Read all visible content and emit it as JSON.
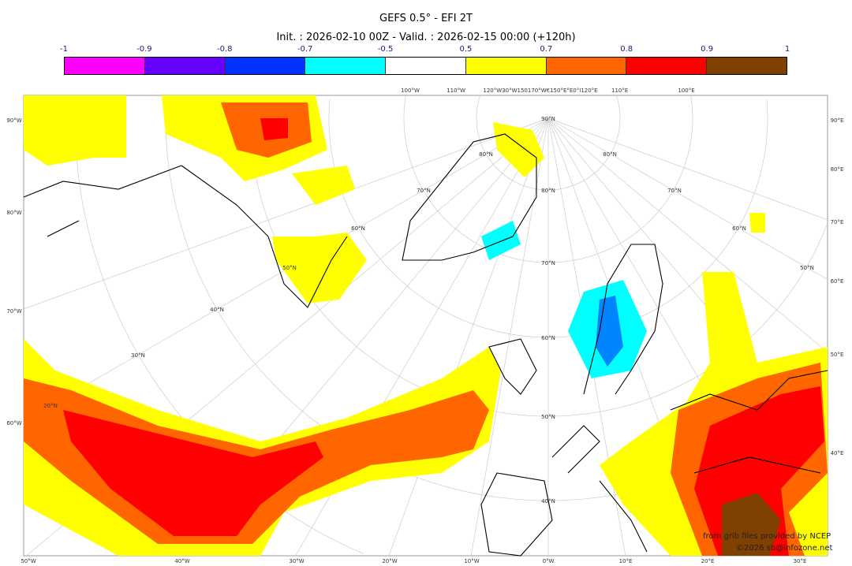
{
  "title": "GEFS 0.5° - EFI 2T",
  "subtitle": "Init. : 2026-02-10 00Z - Valid. : 2026-02-15 00:00 (+120h)",
  "colorbar": {
    "ticks": [
      "-1",
      "-0.9",
      "-0.8",
      "-0.7",
      "-0.5",
      "0.5",
      "0.7",
      "0.8",
      "0.9",
      "1"
    ],
    "colors": [
      "#ff00ff",
      "#6600ff",
      "#0033ff",
      "#00ffff",
      "#ffffff",
      "#ffff00",
      "#ff6600",
      "#ff0000",
      "#804000"
    ]
  },
  "axes": {
    "top": [
      "100°W",
      "110°W",
      "120°W30°W150170°W€150°E°E0°I120°E",
      "110°E",
      "100°E"
    ],
    "left": [
      "90°W",
      "80°W",
      "70°W",
      "60°W"
    ],
    "right": [
      "90°E",
      "80°E",
      "70°E",
      "60°E",
      "50°E",
      "40°E"
    ],
    "bottom": [
      "50°W",
      "40°W",
      "30°W",
      "20°W",
      "10°W",
      "0°W",
      "10°E",
      "20°E",
      "30°E"
    ],
    "lat_center": [
      "90°N",
      "80°N",
      "70°N",
      "60°N",
      "50°N",
      "40°N"
    ],
    "lat_left": [
      "80°N",
      "70°N",
      "60°N",
      "50°N",
      "40°N",
      "30°N",
      "20°N"
    ],
    "lat_right": [
      "80°N",
      "70°N",
      "60°N",
      "50°N"
    ]
  },
  "credit": {
    "line1": "from grib files provided by NCEP",
    "line2": "©2026 sb@infozone.net"
  }
}
